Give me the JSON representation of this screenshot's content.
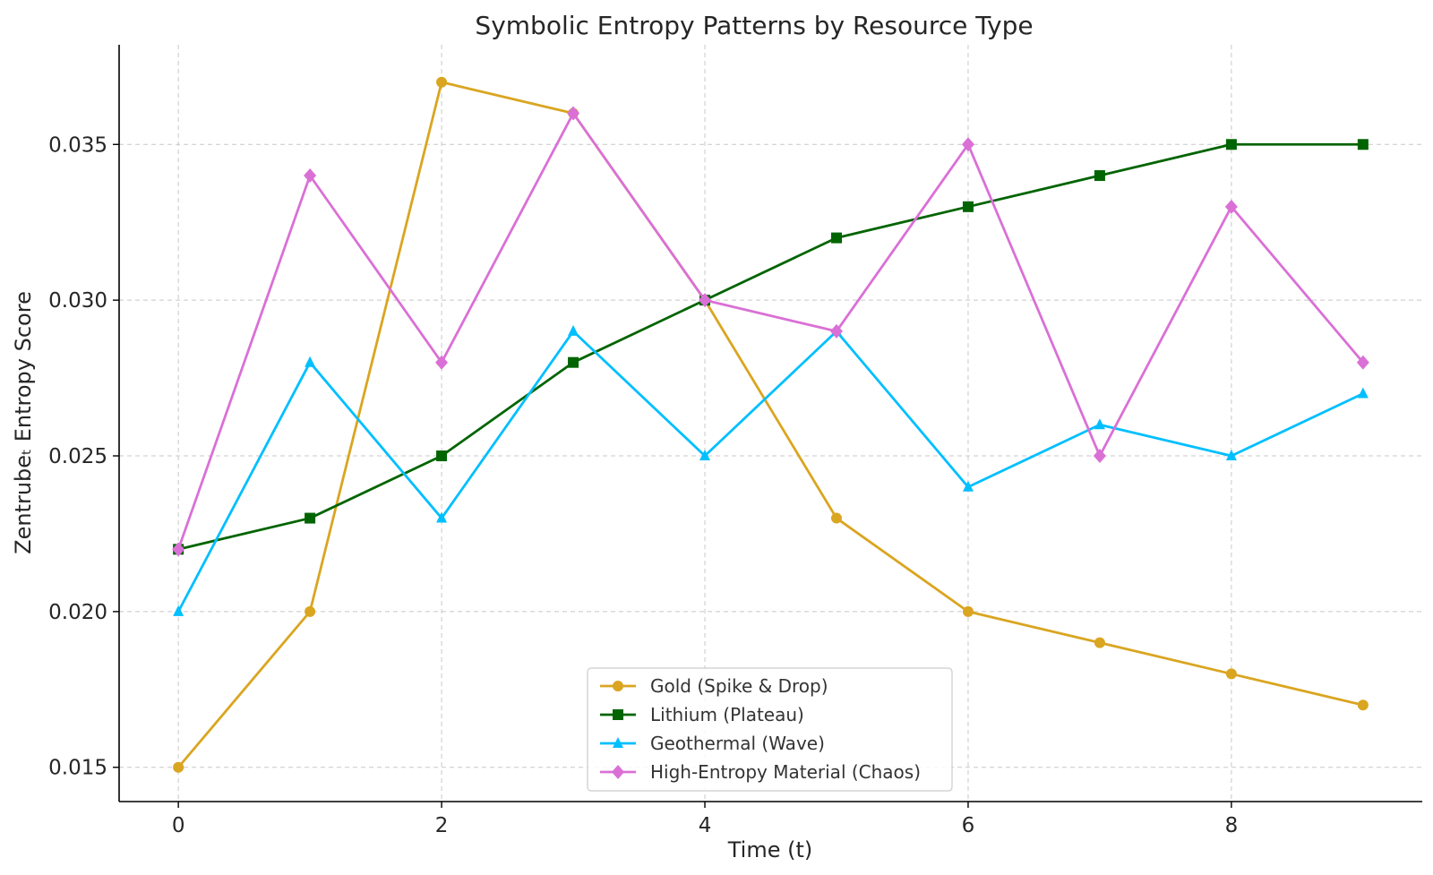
{
  "chart_data": {
    "type": "line",
    "title": "Symbolic Entropy Patterns by Resource Type",
    "xlabel": "Time (t)",
    "ylabel": "Zentrubeₜ Entropy Score",
    "x": [
      0,
      1,
      2,
      3,
      4,
      5,
      6,
      7,
      8,
      9
    ],
    "xlim": [
      -0.45,
      9.45
    ],
    "ylim": [
      0.0139,
      0.0382
    ],
    "xticks": [
      0,
      2,
      4,
      6,
      8
    ],
    "xtick_labels": [
      "0",
      "2",
      "4",
      "6",
      "8"
    ],
    "yticks": [
      0.015,
      0.02,
      0.025,
      0.03,
      0.035
    ],
    "ytick_labels": [
      "0.015",
      "0.020",
      "0.025",
      "0.030",
      "0.035"
    ],
    "grid": true,
    "legend_position": "lower-center",
    "series": [
      {
        "name": "Gold (Spike & Drop)",
        "color": "#DAA520",
        "marker": "circle",
        "values": [
          0.015,
          0.02,
          0.037,
          0.036,
          0.03,
          0.023,
          0.02,
          0.019,
          0.018,
          0.017
        ]
      },
      {
        "name": "Lithium (Plateau)",
        "color": "#006400",
        "marker": "square",
        "values": [
          0.022,
          0.023,
          0.025,
          0.028,
          0.03,
          0.032,
          0.033,
          0.034,
          0.035,
          0.035
        ]
      },
      {
        "name": "Geothermal (Wave)",
        "color": "#00BFFF",
        "marker": "triangle",
        "values": [
          0.02,
          0.028,
          0.023,
          0.029,
          0.025,
          0.029,
          0.024,
          0.026,
          0.025,
          0.027
        ]
      },
      {
        "name": "High-Entropy Material (Chaos)",
        "color": "#DA70D6",
        "marker": "diamond",
        "values": [
          0.022,
          0.034,
          0.028,
          0.036,
          0.03,
          0.029,
          0.035,
          0.025,
          0.033,
          0.028
        ]
      }
    ]
  }
}
